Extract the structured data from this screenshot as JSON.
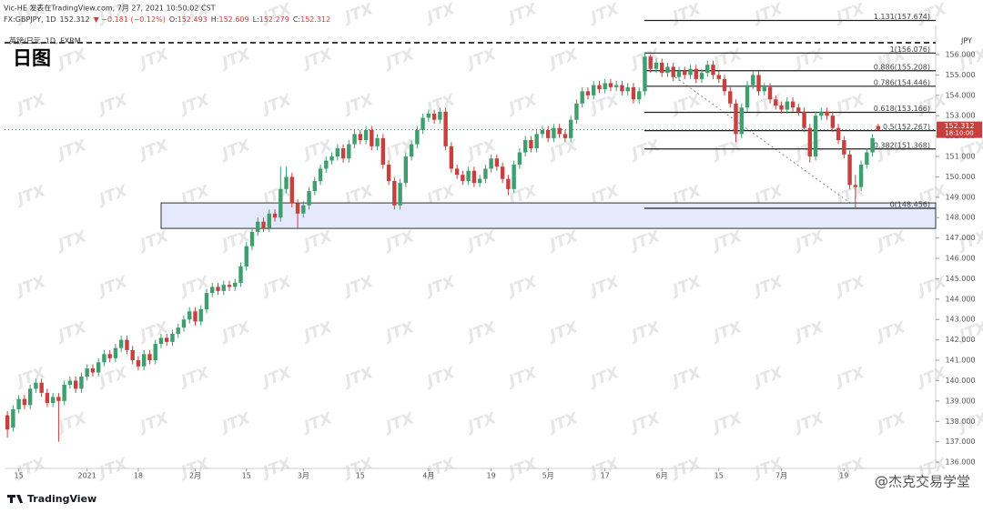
{
  "header": {
    "author_line": "Vic-HE 发表在TradingView.com, 7月 27, 2021 10:50:02 CST",
    "symbol": "FX:GBPJPY, 1D",
    "change_text": "▼ −0.181 (−0.12%)",
    "ohlc_prefixes": [
      "O:",
      "H:",
      "L:",
      "C:"
    ],
    "pair_label": "英镑/日元, 1D, FXRM",
    "big_title": "日图",
    "currency": "JPY",
    "countdown": "18:10:00",
    "watermark": "JTX",
    "brand": "TradingView",
    "signature": "@杰克交易学堂"
  },
  "chart_data": {
    "type": "candlestick",
    "up_color": "#3f9e6f",
    "down_color": "#c8403d",
    "grid": false,
    "ylim": [
      135.69,
      157.34
    ],
    "yticks": [
      {
        "value": 136,
        "label": "136.000"
      },
      {
        "value": 137,
        "label": "137.000"
      },
      {
        "value": 138,
        "label": "138.000"
      },
      {
        "value": 139,
        "label": "139.000"
      },
      {
        "value": 140,
        "label": "140.000"
      },
      {
        "value": 141,
        "label": "141.000"
      },
      {
        "value": 142,
        "label": "142.000"
      },
      {
        "value": 143,
        "label": "143.000"
      },
      {
        "value": 144,
        "label": "144.000"
      },
      {
        "value": 145,
        "label": "145.000"
      },
      {
        "value": 146,
        "label": "146.000"
      },
      {
        "value": 147,
        "label": "147.000"
      },
      {
        "value": 148,
        "label": "148.000"
      },
      {
        "value": 149,
        "label": "149.000"
      },
      {
        "value": 150,
        "label": "150.000"
      },
      {
        "value": 151,
        "label": "151.000"
      },
      {
        "value": 152,
        "label": "152.000"
      },
      {
        "value": 153,
        "label": "153.000"
      },
      {
        "value": 154,
        "label": "154.000"
      },
      {
        "value": 155,
        "label": "155.000"
      },
      {
        "value": 156,
        "label": "156.000"
      }
    ],
    "xlim": [
      -0.5,
      163.1
    ],
    "xticks": [
      {
        "value": 2,
        "label": "15"
      },
      {
        "value": 14,
        "label": "2021"
      },
      {
        "value": 23,
        "label": "18"
      },
      {
        "value": 33,
        "label": "2月"
      },
      {
        "value": 42,
        "label": "15"
      },
      {
        "value": 52,
        "label": "3月"
      },
      {
        "value": 62,
        "label": "15"
      },
      {
        "value": 74,
        "label": "4月"
      },
      {
        "value": 85,
        "label": "19"
      },
      {
        "value": 95,
        "label": "5月"
      },
      {
        "value": 105,
        "label": "17"
      },
      {
        "value": 115,
        "label": "6月"
      },
      {
        "value": 125,
        "label": "15"
      },
      {
        "value": 136,
        "label": "7月"
      },
      {
        "value": 147,
        "label": "19"
      }
    ],
    "fib_levels": [
      {
        "label": "1.131(157.674)",
        "value": 157.674
      },
      {
        "label": "1(156.076)",
        "value": 156.076
      },
      {
        "label": "0.886(155.208)",
        "value": 155.208
      },
      {
        "label": "0.786(154.446)",
        "value": 154.446
      },
      {
        "label": "0.618(153.166)",
        "value": 153.166
      },
      {
        "label": "0.5(152.267)",
        "value": 152.267
      },
      {
        "label": "0.382(151.368)",
        "value": 151.368
      },
      {
        "label": "0(148.456)",
        "value": 148.456
      }
    ],
    "zone": [
      147.47,
      148.72
    ],
    "candles": [
      [
        138.3,
        138.5,
        137.2,
        137.6
      ],
      [
        137.7,
        138.8,
        137.5,
        138.6
      ],
      [
        138.6,
        139.3,
        138.4,
        139.1
      ],
      [
        139.1,
        139.3,
        138.6,
        138.8
      ],
      [
        138.8,
        139.8,
        138.6,
        139.6
      ],
      [
        139.6,
        140.1,
        139.4,
        139.9
      ],
      [
        139.9,
        140.1,
        139.2,
        139.4
      ],
      [
        139.4,
        139.6,
        138.7,
        138.9
      ],
      [
        138.9,
        139.4,
        138.7,
        139.2
      ],
      [
        139.2,
        139.4,
        137.0,
        139.0
      ],
      [
        139.0,
        140.0,
        138.8,
        139.8
      ],
      [
        139.8,
        140.2,
        139.6,
        140.0
      ],
      [
        140.0,
        140.2,
        139.4,
        139.6
      ],
      [
        139.6,
        140.4,
        139.4,
        140.2
      ],
      [
        140.2,
        140.8,
        140.0,
        140.6
      ],
      [
        140.6,
        140.8,
        140.2,
        140.4
      ],
      [
        140.4,
        141.1,
        140.2,
        140.9
      ],
      [
        140.9,
        141.5,
        140.7,
        141.3
      ],
      [
        141.3,
        141.5,
        140.9,
        141.1
      ],
      [
        141.1,
        141.8,
        140.9,
        141.6
      ],
      [
        141.6,
        142.2,
        141.4,
        142.0
      ],
      [
        142.0,
        142.2,
        141.3,
        141.5
      ],
      [
        141.5,
        141.7,
        140.8,
        141.0
      ],
      [
        141.0,
        141.2,
        140.5,
        140.7
      ],
      [
        140.7,
        141.5,
        140.5,
        141.3
      ],
      [
        141.3,
        141.5,
        140.8,
        141.0
      ],
      [
        141.0,
        142.0,
        140.8,
        141.8
      ],
      [
        141.8,
        142.3,
        141.6,
        142.1
      ],
      [
        142.1,
        142.3,
        141.7,
        141.9
      ],
      [
        141.9,
        142.5,
        141.7,
        142.3
      ],
      [
        142.3,
        142.8,
        142.1,
        142.6
      ],
      [
        142.6,
        143.2,
        142.4,
        143.0
      ],
      [
        143.0,
        143.6,
        142.8,
        143.4
      ],
      [
        143.4,
        143.6,
        142.7,
        142.9
      ],
      [
        142.9,
        143.7,
        142.7,
        143.5
      ],
      [
        143.5,
        144.5,
        143.3,
        144.3
      ],
      [
        144.3,
        144.8,
        144.1,
        144.6
      ],
      [
        144.6,
        144.8,
        144.2,
        144.4
      ],
      [
        144.4,
        144.9,
        144.2,
        144.7
      ],
      [
        144.7,
        144.9,
        144.4,
        144.6
      ],
      [
        144.6,
        145.0,
        144.4,
        144.8
      ],
      [
        144.8,
        145.8,
        144.6,
        145.6
      ],
      [
        145.6,
        146.8,
        145.4,
        146.6
      ],
      [
        146.6,
        147.5,
        146.4,
        147.3
      ],
      [
        147.3,
        148.0,
        147.1,
        147.8
      ],
      [
        147.8,
        148.0,
        147.3,
        147.5
      ],
      [
        147.5,
        148.4,
        147.3,
        148.2
      ],
      [
        148.2,
        148.4,
        147.8,
        148.0
      ],
      [
        148.0,
        150.5,
        147.8,
        149.4
      ],
      [
        149.4,
        150.5,
        149.2,
        150.0
      ],
      [
        150.0,
        150.2,
        148.5,
        148.7
      ],
      [
        148.7,
        148.9,
        147.5,
        148.2
      ],
      [
        148.2,
        148.8,
        148.0,
        148.6
      ],
      [
        148.6,
        149.5,
        148.4,
        149.3
      ],
      [
        149.3,
        150.0,
        149.1,
        149.8
      ],
      [
        149.8,
        150.6,
        149.6,
        150.4
      ],
      [
        150.4,
        151.0,
        150.2,
        150.8
      ],
      [
        150.8,
        151.2,
        150.6,
        151.0
      ],
      [
        151.0,
        151.6,
        150.8,
        151.4
      ],
      [
        151.4,
        151.6,
        150.7,
        150.9
      ],
      [
        150.9,
        151.8,
        150.7,
        151.6
      ],
      [
        151.6,
        152.3,
        151.4,
        152.1
      ],
      [
        152.1,
        152.3,
        151.6,
        151.8
      ],
      [
        151.8,
        152.5,
        151.6,
        152.3
      ],
      [
        152.3,
        152.5,
        151.3,
        151.5
      ],
      [
        151.5,
        152.1,
        151.3,
        151.9
      ],
      [
        151.9,
        152.1,
        150.4,
        150.6
      ],
      [
        150.6,
        150.8,
        149.6,
        149.8
      ],
      [
        149.8,
        150.0,
        148.4,
        148.6
      ],
      [
        148.6,
        149.9,
        148.4,
        149.7
      ],
      [
        149.7,
        151.2,
        149.5,
        151.0
      ],
      [
        151.0,
        151.8,
        150.8,
        151.6
      ],
      [
        151.6,
        152.5,
        151.4,
        152.3
      ],
      [
        152.3,
        153.1,
        152.1,
        152.9
      ],
      [
        152.9,
        153.3,
        152.7,
        153.1
      ],
      [
        153.1,
        153.3,
        152.6,
        152.8
      ],
      [
        152.8,
        153.4,
        152.6,
        153.2
      ],
      [
        153.2,
        153.4,
        151.3,
        151.5
      ],
      [
        151.5,
        151.7,
        150.2,
        150.4
      ],
      [
        150.4,
        150.6,
        149.9,
        150.1
      ],
      [
        150.1,
        150.3,
        149.6,
        149.8
      ],
      [
        149.8,
        150.5,
        149.6,
        150.3
      ],
      [
        150.3,
        150.5,
        149.5,
        149.7
      ],
      [
        149.7,
        150.1,
        149.5,
        149.9
      ],
      [
        149.9,
        150.6,
        149.7,
        150.4
      ],
      [
        150.4,
        151.1,
        150.2,
        150.9
      ],
      [
        150.9,
        151.1,
        150.3,
        150.5
      ],
      [
        150.5,
        150.7,
        149.7,
        149.9
      ],
      [
        149.9,
        150.1,
        149.1,
        149.4
      ],
      [
        149.4,
        150.8,
        149.2,
        150.6
      ],
      [
        150.6,
        151.4,
        150.4,
        151.2
      ],
      [
        151.2,
        152.0,
        151.0,
        151.8
      ],
      [
        151.8,
        152.0,
        151.2,
        151.4
      ],
      [
        151.4,
        152.3,
        151.2,
        152.1
      ],
      [
        152.1,
        152.5,
        151.9,
        152.3
      ],
      [
        152.3,
        152.5,
        151.7,
        151.9
      ],
      [
        151.9,
        152.6,
        151.7,
        152.4
      ],
      [
        152.4,
        152.6,
        151.9,
        152.1
      ],
      [
        152.1,
        152.3,
        151.7,
        151.9
      ],
      [
        151.9,
        153.0,
        151.7,
        152.8
      ],
      [
        152.8,
        153.8,
        152.6,
        153.6
      ],
      [
        153.6,
        154.4,
        153.4,
        154.2
      ],
      [
        154.2,
        154.4,
        153.8,
        154.0
      ],
      [
        154.0,
        154.7,
        153.8,
        154.5
      ],
      [
        154.5,
        154.7,
        154.1,
        154.3
      ],
      [
        154.3,
        154.8,
        154.1,
        154.6
      ],
      [
        154.6,
        154.8,
        154.2,
        154.4
      ],
      [
        154.4,
        154.7,
        154.2,
        154.5
      ],
      [
        154.5,
        154.7,
        154.0,
        154.2
      ],
      [
        154.2,
        154.6,
        154.0,
        154.4
      ],
      [
        154.4,
        154.6,
        153.6,
        153.8
      ],
      [
        153.8,
        154.4,
        153.6,
        154.2
      ],
      [
        154.2,
        156.1,
        154.0,
        155.9
      ],
      [
        155.9,
        156.0,
        155.1,
        155.3
      ],
      [
        155.3,
        155.8,
        155.1,
        155.6
      ],
      [
        155.6,
        155.8,
        154.9,
        155.1
      ],
      [
        155.1,
        155.6,
        154.9,
        155.4
      ],
      [
        155.4,
        155.6,
        154.7,
        154.9
      ],
      [
        154.9,
        155.4,
        154.7,
        155.2
      ],
      [
        155.2,
        155.4,
        154.8,
        155.0
      ],
      [
        155.0,
        155.5,
        154.8,
        155.3
      ],
      [
        155.3,
        155.5,
        154.6,
        154.8
      ],
      [
        154.8,
        155.3,
        154.6,
        155.1
      ],
      [
        155.1,
        155.7,
        154.9,
        155.5
      ],
      [
        155.5,
        155.7,
        154.8,
        155.0
      ],
      [
        155.0,
        155.2,
        154.6,
        154.8
      ],
      [
        154.8,
        155.0,
        154.0,
        154.2
      ],
      [
        154.2,
        154.4,
        153.4,
        153.6
      ],
      [
        153.6,
        153.8,
        151.7,
        152.1
      ],
      [
        152.1,
        153.6,
        151.9,
        153.4
      ],
      [
        153.4,
        154.7,
        153.2,
        154.5
      ],
      [
        154.5,
        155.2,
        154.3,
        155.0
      ],
      [
        155.0,
        155.2,
        154.0,
        154.2
      ],
      [
        154.2,
        154.6,
        154.0,
        154.4
      ],
      [
        154.4,
        154.6,
        153.6,
        153.8
      ],
      [
        153.8,
        154.0,
        153.3,
        153.5
      ],
      [
        153.5,
        153.7,
        153.1,
        153.3
      ],
      [
        153.3,
        153.9,
        153.1,
        153.7
      ],
      [
        153.7,
        153.9,
        153.2,
        153.4
      ],
      [
        153.4,
        153.6,
        153.0,
        153.2
      ],
      [
        153.2,
        153.4,
        152.2,
        152.4
      ],
      [
        152.4,
        152.6,
        150.7,
        151.0
      ],
      [
        151.0,
        153.2,
        150.8,
        153.0
      ],
      [
        153.0,
        153.4,
        152.8,
        153.2
      ],
      [
        153.2,
        153.4,
        152.8,
        153.0
      ],
      [
        153.0,
        153.2,
        152.2,
        152.4
      ],
      [
        152.4,
        152.6,
        151.6,
        151.8
      ],
      [
        151.8,
        152.0,
        150.9,
        151.1
      ],
      [
        151.1,
        151.3,
        149.4,
        149.6
      ],
      [
        149.6,
        150.1,
        148.5,
        149.5
      ],
      [
        149.5,
        150.8,
        149.3,
        150.6
      ],
      [
        150.6,
        151.4,
        150.4,
        151.2
      ],
      [
        151.2,
        152.1,
        151.0,
        151.9
      ],
      [
        152.493,
        152.609,
        152.279,
        152.312
      ]
    ]
  }
}
